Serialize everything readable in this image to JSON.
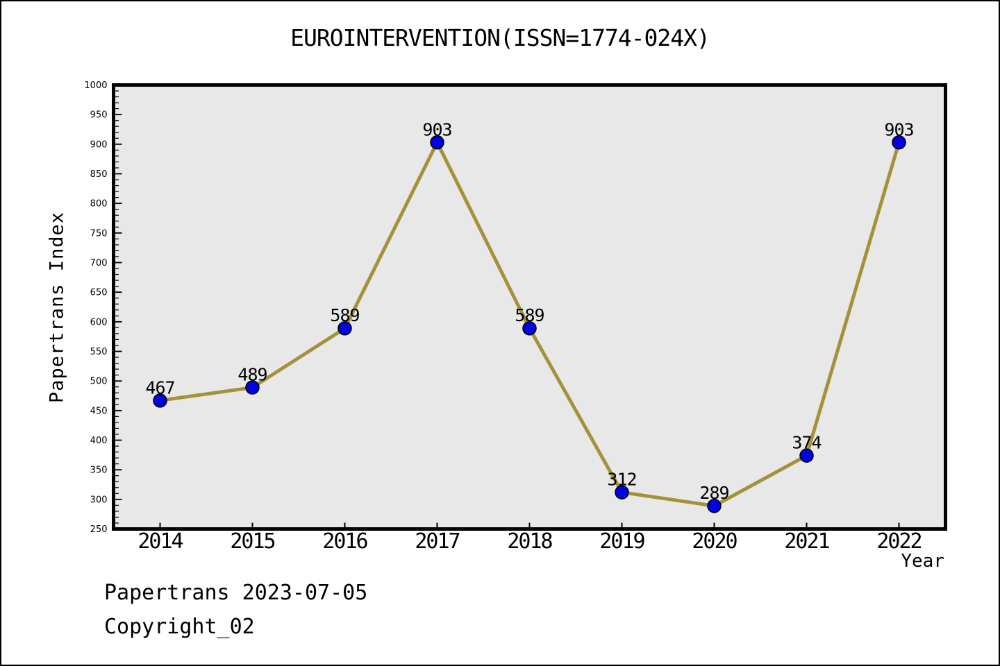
{
  "footer": {
    "line1": "Papertrans 2023-07-05",
    "line2": "Copyright_02"
  },
  "chart_data": {
    "type": "line",
    "title": "EUROINTERVENTION(ISSN=1774-024X)",
    "xlabel": "Year",
    "ylabel": "Papertrans Index",
    "x": [
      2014,
      2015,
      2016,
      2017,
      2018,
      2019,
      2020,
      2021,
      2022
    ],
    "series": [
      {
        "name": "Papertrans Index",
        "values": [
          467,
          489,
          589,
          903,
          589,
          312,
          289,
          374,
          903
        ]
      }
    ],
    "point_labels": [
      "467",
      "489",
      "589",
      "903",
      "589",
      "312",
      "289",
      "374",
      "903"
    ],
    "ylim": [
      250,
      1000
    ],
    "y_major_step": 50,
    "y_minor_step": 10,
    "grid": false,
    "legend": "none",
    "colors": {
      "line": "#a4923b",
      "marker_fill": "#0000e0",
      "marker_edge": "#000000",
      "plot_background": "#e8e8e8",
      "figure_background": "#ffffff",
      "spine": "#000000",
      "text": "#000000"
    }
  }
}
